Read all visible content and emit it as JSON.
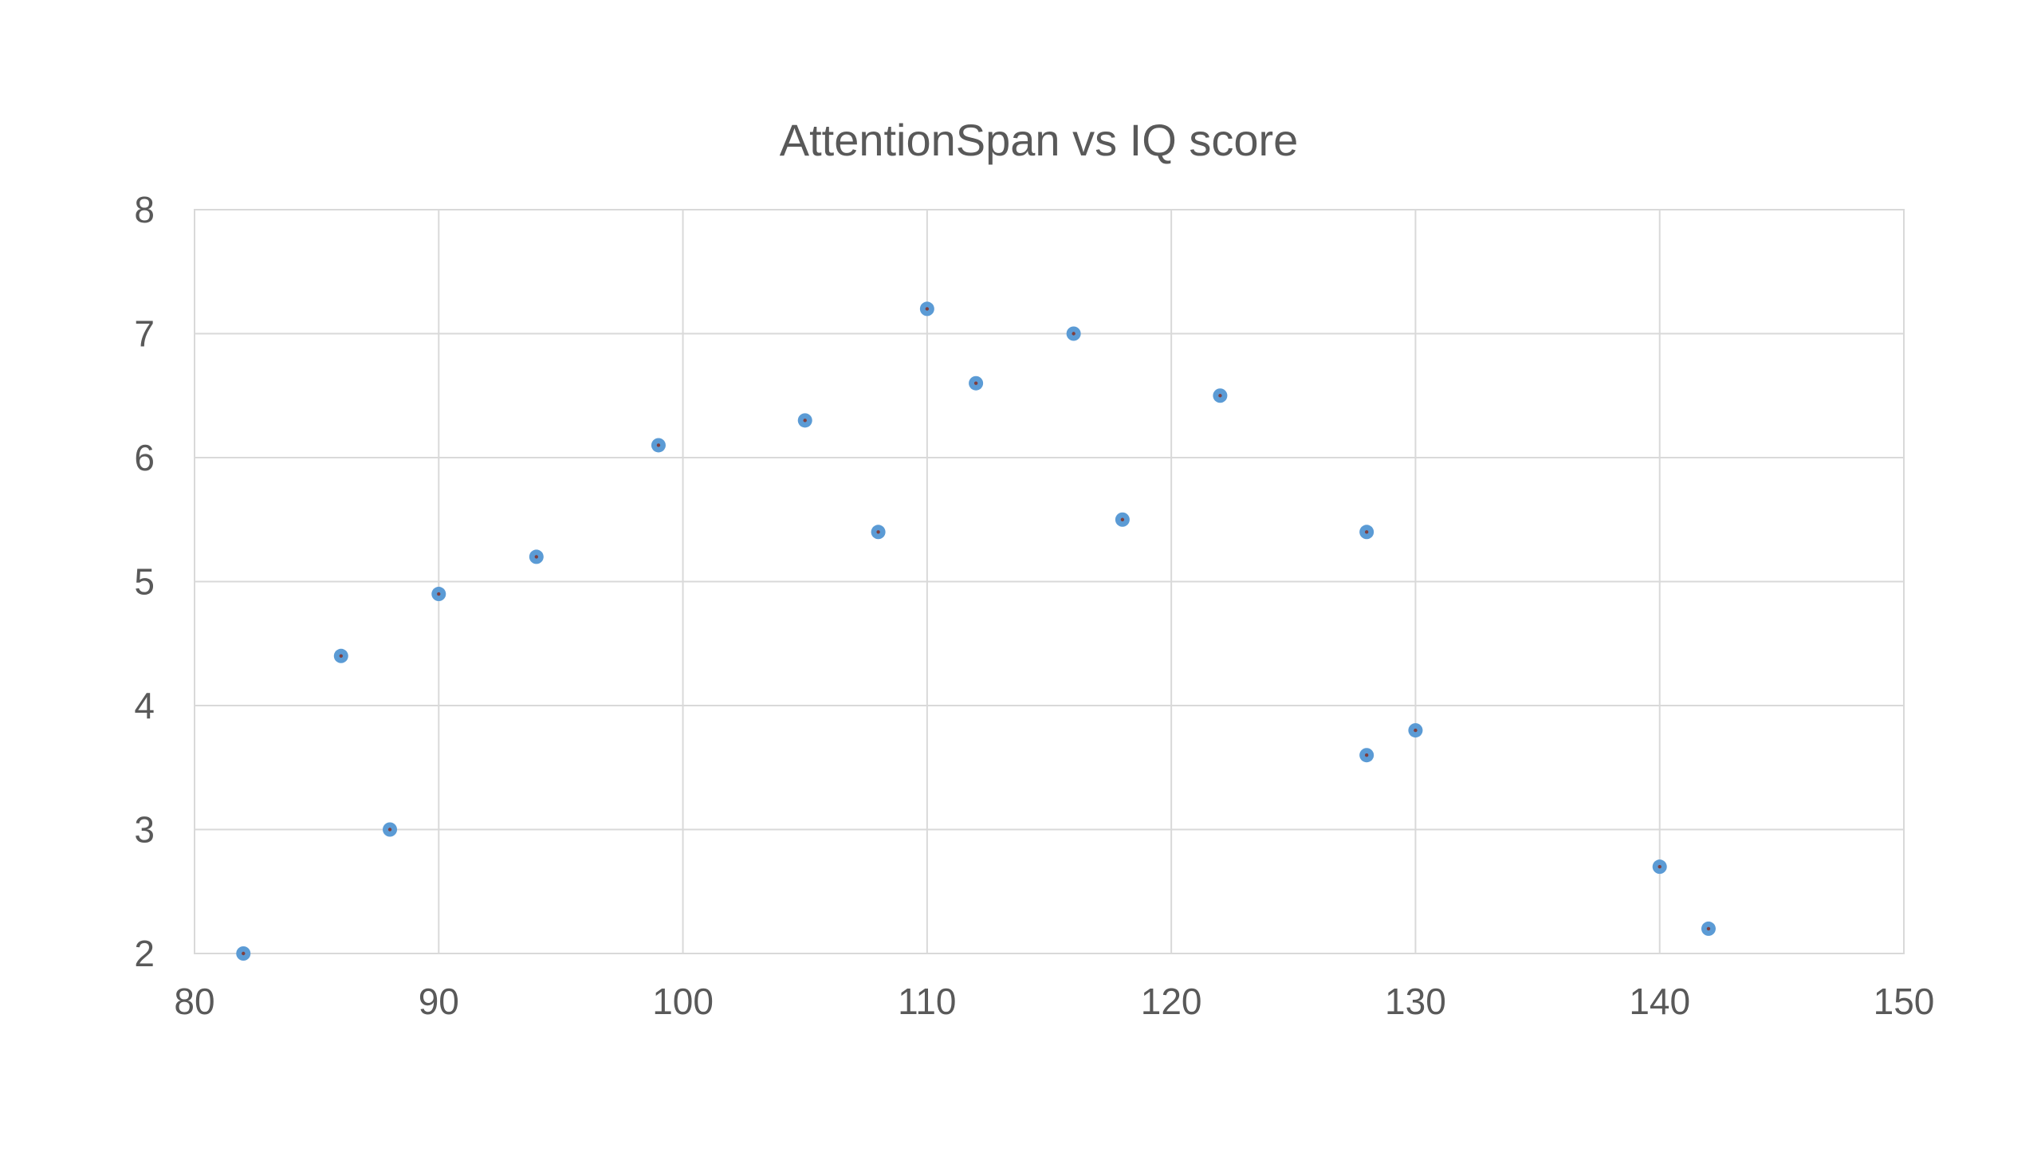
{
  "chart_data": {
    "type": "scatter",
    "title": "AttentionSpan vs IQ score",
    "xlabel": "",
    "ylabel": "",
    "xlim": [
      80,
      150
    ],
    "ylim": [
      2,
      8
    ],
    "x_ticks": [
      "80",
      "90",
      "100",
      "110",
      "120",
      "130",
      "140",
      "150"
    ],
    "y_ticks": [
      "2",
      "3",
      "4",
      "5",
      "6",
      "7",
      "8"
    ],
    "grid": true,
    "legend": "none",
    "marker_color": "#5b9bd5",
    "marker_center_color": "#7f3f3f",
    "points": [
      {
        "x": 82,
        "y": 2.0
      },
      {
        "x": 86,
        "y": 4.4
      },
      {
        "x": 88,
        "y": 3.0
      },
      {
        "x": 90,
        "y": 4.9
      },
      {
        "x": 94,
        "y": 5.2
      },
      {
        "x": 99,
        "y": 6.1
      },
      {
        "x": 105,
        "y": 6.3
      },
      {
        "x": 108,
        "y": 5.4
      },
      {
        "x": 110,
        "y": 7.2
      },
      {
        "x": 112,
        "y": 6.6
      },
      {
        "x": 116,
        "y": 7.0
      },
      {
        "x": 118,
        "y": 5.5
      },
      {
        "x": 122,
        "y": 6.5
      },
      {
        "x": 128,
        "y": 5.4
      },
      {
        "x": 128,
        "y": 3.6
      },
      {
        "x": 130,
        "y": 3.8
      },
      {
        "x": 140,
        "y": 2.7
      },
      {
        "x": 142,
        "y": 2.2
      }
    ]
  }
}
